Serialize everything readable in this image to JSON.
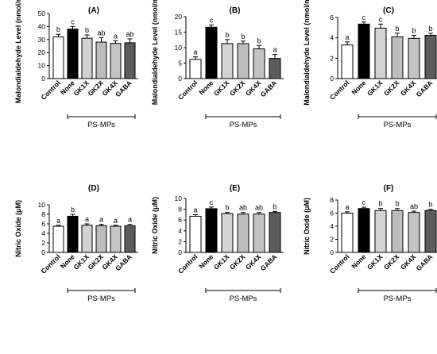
{
  "figure": {
    "group_label": "PS-MPs",
    "bar_colors": [
      "#ffffff",
      "#000000",
      "#d3d3d3",
      "#bdbdbd",
      "#c4c4c4",
      "#5c5c5c"
    ]
  },
  "chart_data": [
    {
      "type": "bar",
      "title": "(A)",
      "ylabel": "Malondialdehyde Level (nmol/mL)",
      "ylim": [
        0,
        50
      ],
      "yticks": [
        0,
        10,
        20,
        30,
        40,
        50
      ],
      "categories": [
        "Control",
        "None",
        "GK1X",
        "GK2X",
        "GK4X",
        "GABA"
      ],
      "values": [
        32,
        38,
        31,
        28,
        27,
        27.5
      ],
      "errors": [
        2,
        2,
        2.5,
        3.5,
        2,
        3
      ],
      "letters": [
        "b",
        "c",
        "b",
        "ab",
        "a",
        "ab"
      ],
      "group_label": "PS-MPs"
    },
    {
      "type": "bar",
      "title": "(B)",
      "ylabel": "Malondialdehyde Level (nmol/mL)",
      "ylim": [
        0,
        20
      ],
      "yticks": [
        0,
        5,
        10,
        15,
        20
      ],
      "categories": [
        "Control",
        "None",
        "GK1X",
        "GK2X",
        "GK4X",
        "GABA"
      ],
      "values": [
        6.2,
        16.6,
        11.3,
        11.3,
        9.6,
        6.5
      ],
      "errors": [
        0.8,
        0.7,
        1.3,
        0.8,
        1.1,
        1.3
      ],
      "letters": [
        "a",
        "c",
        "b",
        "b",
        "b",
        "a"
      ],
      "group_label": "PS-MPs"
    },
    {
      "type": "bar",
      "title": "(C)",
      "ylabel": "Malondialdehyde Level (nmol/mL)",
      "ylim": [
        0,
        6
      ],
      "yticks": [
        0,
        2,
        4,
        6
      ],
      "categories": [
        "Control",
        "None",
        "GK1X",
        "GK2X",
        "GK4X",
        "GABA"
      ],
      "values": [
        3.3,
        5.35,
        4.95,
        4.1,
        3.95,
        4.25
      ],
      "errors": [
        0.3,
        0.2,
        0.4,
        0.35,
        0.3,
        0.2
      ],
      "letters": [
        "a",
        "c",
        "c",
        "b",
        "b",
        "b"
      ],
      "group_label": "PS-MPs"
    },
    {
      "type": "bar",
      "title": "(D)",
      "ylabel": "Nitric Oxide (μM)",
      "ylim": [
        0,
        10
      ],
      "yticks": [
        0,
        2,
        4,
        6,
        8,
        10
      ],
      "categories": [
        "Control",
        "None",
        "GK1X",
        "GK2X",
        "GK4X",
        "GABA"
      ],
      "values": [
        5.5,
        7.6,
        5.7,
        5.6,
        5.5,
        5.6
      ],
      "errors": [
        0.2,
        0.4,
        0.3,
        0.3,
        0.2,
        0.3
      ],
      "letters": [
        "a",
        "b",
        "a",
        "a",
        "a",
        "a"
      ],
      "group_label": "PS-MPs"
    },
    {
      "type": "bar",
      "title": "(E)",
      "ylabel": "Nitric Oxide (μM)",
      "ylim": [
        0,
        10
      ],
      "yticks": [
        0,
        2,
        4,
        6,
        8,
        10
      ],
      "categories": [
        "Control",
        "None",
        "GK1X",
        "GK2X",
        "GK4X",
        "GABA"
      ],
      "values": [
        6.7,
        8.1,
        7.2,
        7.1,
        7.1,
        7.4
      ],
      "errors": [
        0.3,
        0.3,
        0.2,
        0.3,
        0.3,
        0.2
      ],
      "letters": [
        "a",
        "c",
        "b",
        "ab",
        "ab",
        "b"
      ],
      "group_label": "PS-MPs"
    },
    {
      "type": "bar",
      "title": "(F)",
      "ylabel": "Nitric Oxide (μM)",
      "ylim": [
        0,
        8
      ],
      "yticks": [
        0,
        2,
        4,
        6,
        8
      ],
      "categories": [
        "Control",
        "None",
        "GK1X",
        "GK2X",
        "GK4X",
        "GABA"
      ],
      "values": [
        6.0,
        6.7,
        6.4,
        6.4,
        6.1,
        6.4
      ],
      "errors": [
        0.2,
        0.2,
        0.3,
        0.3,
        0.2,
        0.2
      ],
      "letters": [
        "a",
        "c",
        "b",
        "b",
        "ab",
        "b"
      ],
      "group_label": "PS-MPs"
    }
  ]
}
